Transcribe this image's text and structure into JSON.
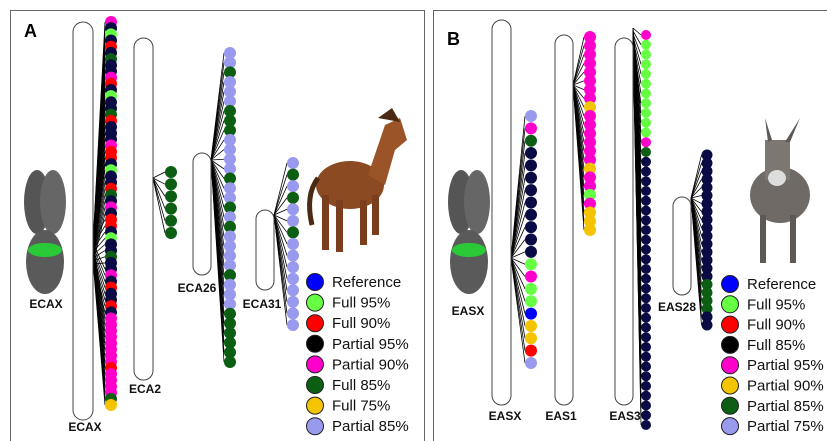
{
  "panels": [
    {
      "label": "A",
      "ideogram": "ECAX",
      "chromosomes": [
        "ECAX",
        "ECA2",
        "ECA26",
        "ECA31"
      ],
      "legend": [
        {
          "label": "Reference",
          "color": "#0000ff"
        },
        {
          "label": "Full 95%",
          "color": "#66ff44"
        },
        {
          "label": "Full 90%",
          "color": "#ff0000"
        },
        {
          "label": "Partial 95%",
          "color": "#000000"
        },
        {
          "label": "Partial 90%",
          "color": "#ff00cc"
        },
        {
          "label": "Full 85%",
          "color": "#0b5e12"
        },
        {
          "label": "Full 75%",
          "color": "#f5c400"
        },
        {
          "label": "Partial 85%",
          "color": "#9999ee"
        }
      ]
    },
    {
      "label": "B",
      "ideogram": "EASX",
      "chromosomes": [
        "EASX",
        "EAS1",
        "EAS3",
        "EAS28"
      ],
      "legend": [
        {
          "label": "Reference",
          "color": "#0000ff"
        },
        {
          "label": "Full 95%",
          "color": "#66ff44"
        },
        {
          "label": "Full 90%",
          "color": "#ff0000"
        },
        {
          "label": "Full 85%",
          "color": "#000000"
        },
        {
          "label": "Partial 95%",
          "color": "#ff00cc"
        },
        {
          "label": "Partial 90%",
          "color": "#f5c400"
        },
        {
          "label": "Partial 85%",
          "color": "#0b5e12"
        },
        {
          "label": "Partial 75%",
          "color": "#9999ee"
        }
      ]
    }
  ]
}
